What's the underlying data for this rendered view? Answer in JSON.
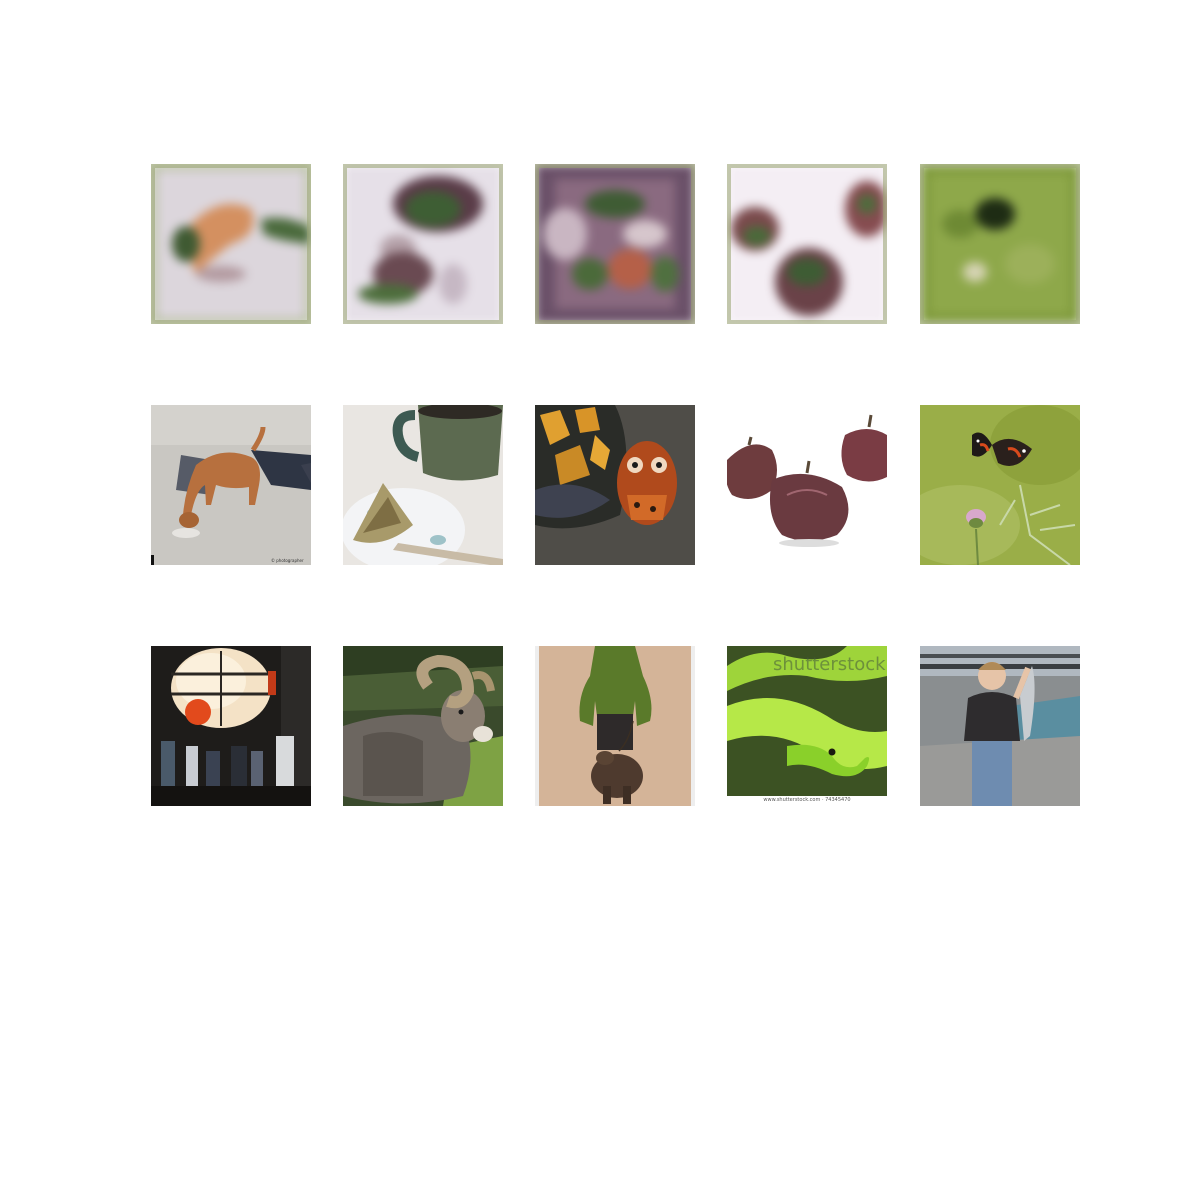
{
  "grid": {
    "rows": 3,
    "columns": 5,
    "row_descriptions": [
      "generated-blurry-samples",
      "reference-photos-a",
      "reference-photos-b"
    ]
  },
  "tiles": [
    {
      "subject": "blurry-dog-sample"
    },
    {
      "subject": "blurry-plant-sample"
    },
    {
      "subject": "blurry-flowers-sample"
    },
    {
      "subject": "blurry-figs-sample"
    },
    {
      "subject": "blurry-green-sample"
    },
    {
      "subject": "dog-on-pavement"
    },
    {
      "subject": "mug-and-plate"
    },
    {
      "subject": "box-turtle"
    },
    {
      "subject": "figs"
    },
    {
      "subject": "butterfly-on-thistle"
    },
    {
      "subject": "lamp-in-room"
    },
    {
      "subject": "bighorn-ram"
    },
    {
      "subject": "person-with-bear"
    },
    {
      "subject": "green-snake",
      "watermark": "shutterstock",
      "caption": "www.shutterstock.com · 74345470"
    },
    {
      "subject": "person-holding-fish"
    }
  ]
}
